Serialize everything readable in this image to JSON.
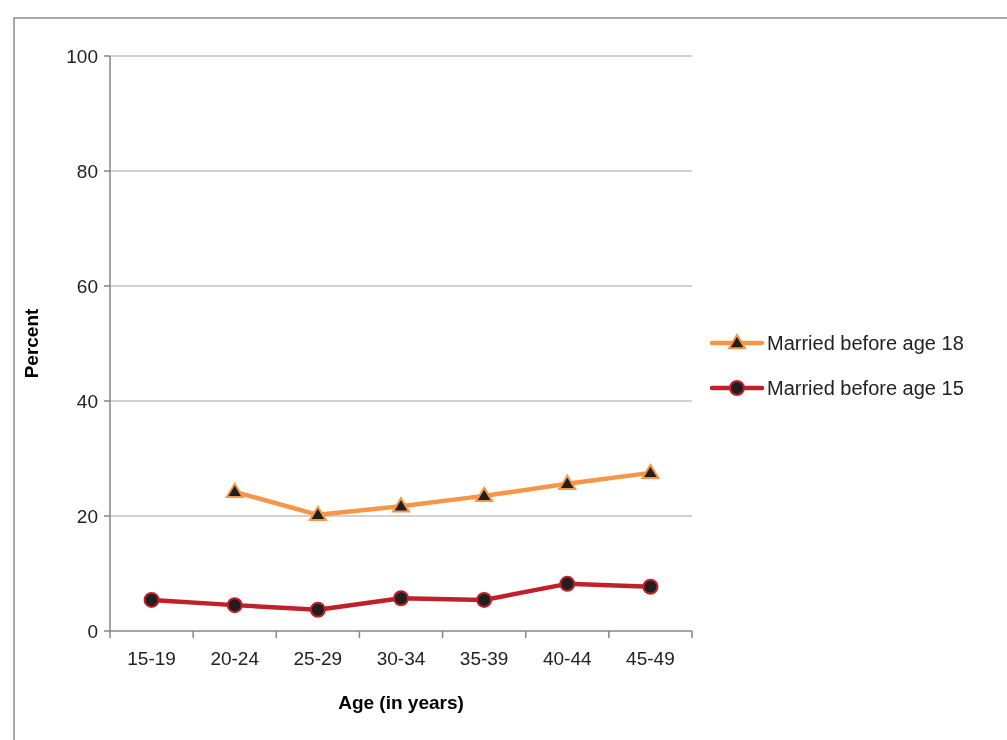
{
  "chart_data": {
    "type": "line",
    "xlabel": "Age (in years)",
    "ylabel": "Percent",
    "categories": [
      "15-19",
      "20-24",
      "25-29",
      "30-34",
      "35-39",
      "40-44",
      "45-49"
    ],
    "series": [
      {
        "name": "Married before age 18",
        "color": "#f79646",
        "marker": "triangle",
        "values": [
          null,
          24.2,
          20.2,
          21.7,
          23.5,
          25.6,
          27.5
        ]
      },
      {
        "name": "Married before age 15",
        "color": "#c0202a",
        "marker": "circle",
        "values": [
          5.4,
          4.5,
          3.7,
          5.7,
          5.4,
          8.2,
          7.7
        ]
      }
    ],
    "ylim": [
      0,
      100
    ],
    "yticks": [
      0,
      20,
      40,
      60,
      80,
      100
    ],
    "grid": "y",
    "legend": "right",
    "line_style": "solid"
  }
}
